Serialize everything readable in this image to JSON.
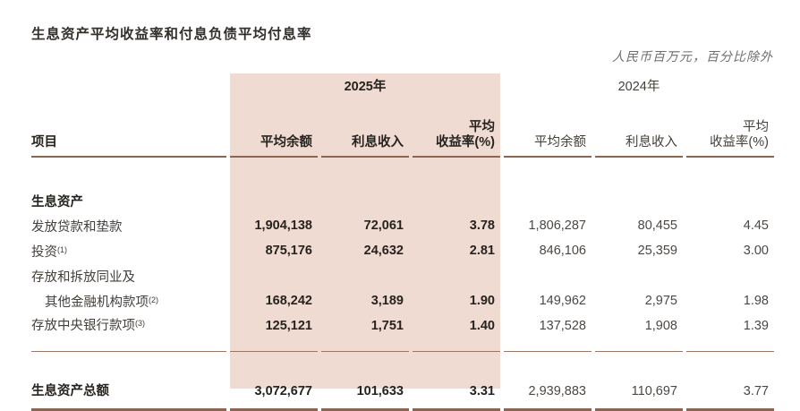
{
  "title": "生息资产平均收益率和付息负债平均付息率",
  "unit_note": "人民币百万元，百分比除外",
  "colors": {
    "highlight_band": "#f0dbd3",
    "rule_line": "#8c6552"
  },
  "table": {
    "item_header": "项目",
    "year_2025": "2025年",
    "year_2024": "2024年",
    "columns_2025": {
      "avg_balance": "平均余额",
      "interest_income": "利息收入",
      "yield_line1": "平均",
      "yield_line2": "收益率(%)"
    },
    "columns_2024": {
      "avg_balance": "平均余额",
      "interest_income": "利息收入",
      "yield_line1": "平均",
      "yield_line2": "收益率(%)"
    },
    "rows": [
      {
        "label": "生息资产"
      },
      {
        "label": "发放贷款和垫款",
        "values": [
          "1,904,138",
          "72,061",
          "3.78",
          "1,806,287",
          "80,455",
          "4.45"
        ]
      },
      {
        "label": "投资",
        "sup": "(1)",
        "values": [
          "875,176",
          "24,632",
          "2.81",
          "846,106",
          "25,359",
          "3.00"
        ]
      },
      {
        "label": "存放和拆放同业及"
      },
      {
        "label": "其他金融机构款项",
        "sup": "(2)",
        "values": [
          "168,242",
          "3,189",
          "1.90",
          "149,962",
          "2,975",
          "1.98"
        ]
      },
      {
        "label": "存放中央银行款项",
        "sup": "(3)",
        "values": [
          "125,121",
          "1,751",
          "1.40",
          "137,528",
          "1,908",
          "1.39"
        ]
      },
      {
        "label": "生息资产总额",
        "values": [
          "3,072,677",
          "101,633",
          "3.31",
          "2,939,883",
          "110,697",
          "3.77"
        ]
      }
    ]
  }
}
